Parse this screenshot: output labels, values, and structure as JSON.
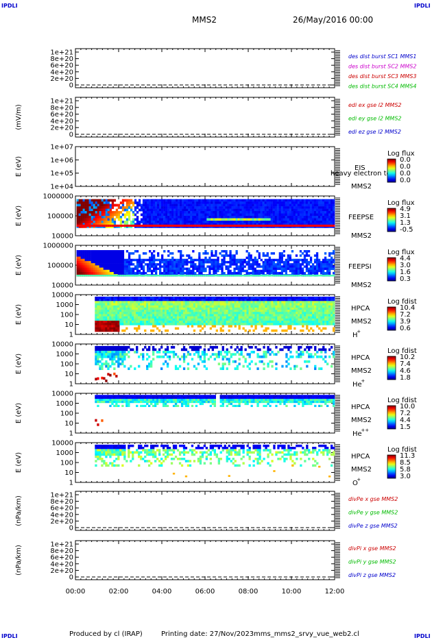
{
  "header": {
    "corner_tl": "IPDLI",
    "corner_tr": "IPDLI",
    "corner_bl": "IPDLI",
    "corner_br": "IPDLI",
    "spacecraft": "MMS2",
    "date": "26/May/2016 00:00"
  },
  "footer": {
    "produced_by": "Produced by cl (IRAP)",
    "printing_date": "Printing date: 27/Nov/2023",
    "script": "mms_mms2_srvy_vue_web2.cl"
  },
  "colors": {
    "mms1": "#0000cc",
    "mms2": "#cc00cc",
    "mms3": "#cc0000",
    "mms4": "#00bb00",
    "x": "#cc0000",
    "y": "#00bb00",
    "z": "#0000cc"
  },
  "chart_data": {
    "type": "multi-panel time series",
    "x_ticks": [
      "00:00",
      "02:00",
      "04:00",
      "06:00",
      "08:00",
      "10:00",
      "12:00"
    ],
    "x_range_hours": [
      0,
      12
    ],
    "panels": [
      {
        "kind": "line",
        "ylabel": "",
        "ticks": [
          "1e+21",
          "8e+20",
          "6e+20",
          "4e+20",
          "2e+20",
          "0"
        ],
        "legend": [
          {
            "text": "des dist burst SC1 MMS1",
            "color": "#0000cc"
          },
          {
            "text": "des dist burst SC2 MMS2",
            "color": "#cc00cc"
          },
          {
            "text": "des dist burst SC3 MMS3",
            "color": "#cc0000"
          },
          {
            "text": "des dist burst SC4 MMS4",
            "color": "#00bb00"
          }
        ]
      },
      {
        "kind": "line",
        "ylabel": "(mV/m)",
        "ticks": [
          "1e+21",
          "8e+20",
          "6e+20",
          "4e+20",
          "2e+20",
          "0"
        ],
        "legend": [
          {
            "text": "edi ex gse l2 MMS2",
            "color": "#cc0000"
          },
          {
            "text": "edi ey gse l2 MMS2",
            "color": "#00bb00"
          },
          {
            "text": "edi ez gse l2 MMS2",
            "color": "#0000cc"
          }
        ]
      },
      {
        "kind": "spectrogram",
        "ylabel": "E (eV)",
        "ticks": [
          "1e+07",
          "1e+06",
          "1e+05",
          "1e+04"
        ],
        "labels": [
          "EIS",
          "heavy electron to",
          "MMS2"
        ],
        "colorbar_title": "Log flux",
        "colorbar_values": [
          "0.0",
          "0.0",
          "0.0",
          "0.0"
        ],
        "start_hour": null,
        "pattern": "empty"
      },
      {
        "kind": "spectrogram",
        "ylabel": "E (eV)",
        "ticks": [
          "1000000",
          "100000",
          "10000"
        ],
        "labels": [
          "FEEPSE",
          "MMS2"
        ],
        "colorbar_title": "Log flux",
        "colorbar_values": [
          "4.9",
          "3.1",
          "1.3",
          "-0.5"
        ],
        "start_hour": 0.05,
        "pattern": "feepse"
      },
      {
        "kind": "spectrogram",
        "ylabel": "E (eV)",
        "ticks": [
          "1000000",
          "100000",
          "10000"
        ],
        "labels": [
          "FEEPSI",
          "MMS2"
        ],
        "colorbar_title": "Log flux",
        "colorbar_values": [
          "4.4",
          "3.0",
          "1.6",
          "0.3"
        ],
        "start_hour": 0.05,
        "pattern": "feepsi"
      },
      {
        "kind": "spectrogram",
        "ylabel": "E (eV)",
        "ticks": [
          "10000",
          "1000",
          "100",
          "10",
          "1"
        ],
        "labels": [
          "HPCA",
          "MMS2",
          "H",
          "+"
        ],
        "colorbar_title": "Log fdist",
        "colorbar_values": [
          "10.4",
          "7.2",
          "3.9",
          "0.6"
        ],
        "start_hour": 0.9,
        "pattern": "h"
      },
      {
        "kind": "spectrogram",
        "ylabel": "E (eV)",
        "ticks": [
          "10000",
          "1000",
          "100",
          "10",
          "1"
        ],
        "labels": [
          "HPCA",
          "MMS2",
          "He",
          "+"
        ],
        "colorbar_title": "Log fdist",
        "colorbar_values": [
          "10.2",
          "7.4",
          "4.6",
          "1.8"
        ],
        "start_hour": 0.9,
        "pattern": "he"
      },
      {
        "kind": "spectrogram",
        "ylabel": "E (eV)",
        "ticks": [
          "10000",
          "1000",
          "100",
          "10",
          "1"
        ],
        "labels": [
          "HPCA",
          "MMS2",
          "He",
          "++"
        ],
        "colorbar_title": "Log fdist",
        "colorbar_values": [
          "10.0",
          "7.2",
          "4.4",
          "1.5"
        ],
        "start_hour": 0.9,
        "pattern": "hepp"
      },
      {
        "kind": "spectrogram",
        "ylabel": "E (eV)",
        "ticks": [
          "10000",
          "1000",
          "100",
          "10",
          "1"
        ],
        "labels": [
          "HPCA",
          "MMS2",
          "O",
          "+"
        ],
        "colorbar_title": "Log fdist",
        "colorbar_values": [
          "11.3",
          "8.5",
          "5.8",
          "3.0"
        ],
        "start_hour": 0.9,
        "pattern": "o"
      },
      {
        "kind": "line",
        "ylabel": "(nPa/km)",
        "ticks": [
          "1e+21",
          "8e+20",
          "6e+20",
          "4e+20",
          "2e+20",
          "0"
        ],
        "legend": [
          {
            "text": "divPe x gse MMS2",
            "color": "#cc0000"
          },
          {
            "text": "divPe y gse MMS2",
            "color": "#00bb00"
          },
          {
            "text": "divPe z gse MMS2",
            "color": "#0000cc"
          }
        ]
      },
      {
        "kind": "line",
        "ylabel": "(nPa/km)",
        "ticks": [
          "1e+21",
          "8e+20",
          "6e+20",
          "4e+20",
          "2e+20",
          "0"
        ],
        "legend": [
          {
            "text": "divPi x gse MMS2",
            "color": "#cc0000"
          },
          {
            "text": "divPi y gse MMS2",
            "color": "#00bb00"
          },
          {
            "text": "divPi z gse MMS2",
            "color": "#0000cc"
          }
        ]
      }
    ]
  }
}
